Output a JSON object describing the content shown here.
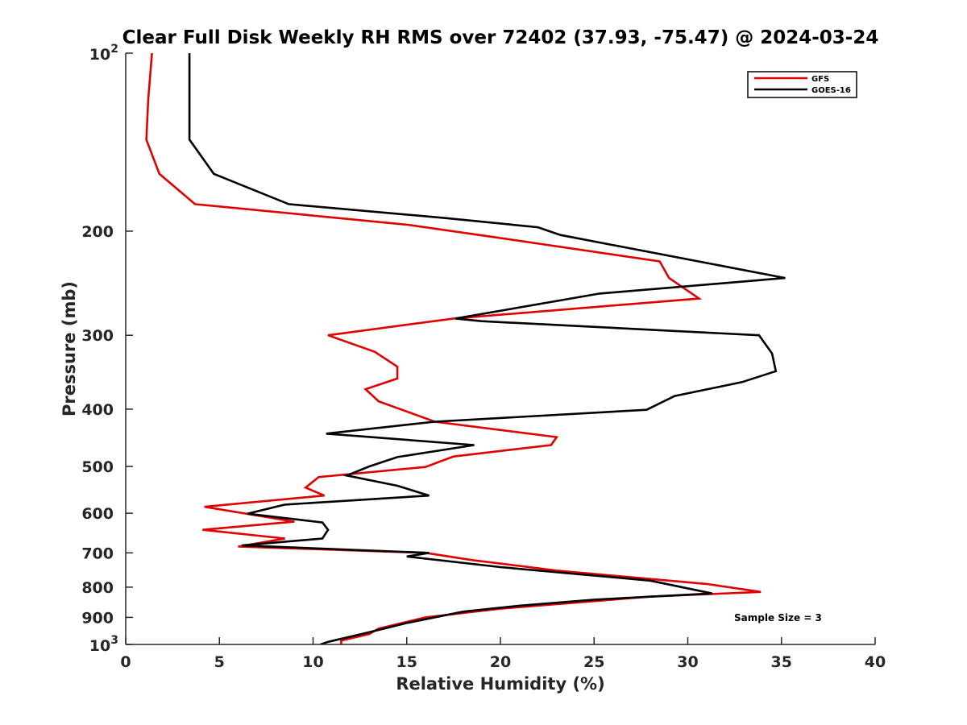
{
  "chart_data": {
    "type": "line",
    "title": "Clear Full Disk Weekly RH RMS over 72402 (37.93, -75.47) @ 2024-03-24",
    "xlabel": "Relative Humidity (%)",
    "ylabel": "Pressure (mb)",
    "xlim": [
      0,
      40
    ],
    "ylim": [
      100,
      1000
    ],
    "y_scale": "log",
    "y_reversed": true,
    "x_ticks": [
      {
        "value": 0,
        "label": "0"
      },
      {
        "value": 5,
        "label": "5"
      },
      {
        "value": 10,
        "label": "10"
      },
      {
        "value": 15,
        "label": "15"
      },
      {
        "value": 20,
        "label": "20"
      },
      {
        "value": 25,
        "label": "25"
      },
      {
        "value": 30,
        "label": "30"
      },
      {
        "value": 35,
        "label": "35"
      },
      {
        "value": 40,
        "label": "40"
      }
    ],
    "y_ticks": [
      {
        "value": 100,
        "base": "10",
        "exp": "2"
      },
      {
        "value": 200,
        "label": "200"
      },
      {
        "value": 300,
        "label": "300"
      },
      {
        "value": 400,
        "label": "400"
      },
      {
        "value": 500,
        "label": "500"
      },
      {
        "value": 600,
        "label": "600"
      },
      {
        "value": 700,
        "label": "700"
      },
      {
        "value": 800,
        "label": "800"
      },
      {
        "value": 900,
        "label": "900"
      },
      {
        "value": 1000,
        "base": "10",
        "exp": "3"
      }
    ],
    "legend": {
      "position": "top-right"
    },
    "annotation": "Sample Size = 3",
    "series": [
      {
        "name": "GFS",
        "color": "#e00000",
        "points": [
          [
            1.4,
            100
          ],
          [
            1.2,
            120
          ],
          [
            1.1,
            140
          ],
          [
            1.8,
            160
          ],
          [
            3.7,
            180
          ],
          [
            15.0,
            195
          ],
          [
            19.8,
            205
          ],
          [
            28.5,
            225
          ],
          [
            29.0,
            240
          ],
          [
            30.6,
            260
          ],
          [
            17.5,
            281
          ],
          [
            10.8,
            300
          ],
          [
            13.3,
            320
          ],
          [
            14.5,
            339
          ],
          [
            14.5,
            355
          ],
          [
            12.8,
            370
          ],
          [
            13.5,
            388
          ],
          [
            16.5,
            420
          ],
          [
            23.0,
            446
          ],
          [
            22.7,
            460
          ],
          [
            17.5,
            481
          ],
          [
            16.0,
            501
          ],
          [
            10.3,
            521
          ],
          [
            9.6,
            543
          ],
          [
            10.6,
            560
          ],
          [
            4.2,
            585
          ],
          [
            9.0,
            620
          ],
          [
            4.1,
            640
          ],
          [
            8.5,
            662
          ],
          [
            6.0,
            683
          ],
          [
            16.0,
            700
          ],
          [
            18.5,
            720
          ],
          [
            23.0,
            750
          ],
          [
            31.0,
            790
          ],
          [
            33.9,
            815
          ],
          [
            28.0,
            830
          ],
          [
            20.0,
            870
          ],
          [
            16.0,
            900
          ],
          [
            13.5,
            940
          ],
          [
            13.0,
            960
          ],
          [
            11.5,
            985
          ],
          [
            11.5,
            1000
          ]
        ]
      },
      {
        "name": "GOES-16",
        "color": "#000000",
        "points": [
          [
            3.4,
            100
          ],
          [
            3.4,
            120
          ],
          [
            3.4,
            140
          ],
          [
            4.7,
            160
          ],
          [
            8.7,
            180
          ],
          [
            17.0,
            190
          ],
          [
            22.0,
            197
          ],
          [
            23.2,
            203
          ],
          [
            35.2,
            240
          ],
          [
            25.3,
            255
          ],
          [
            17.6,
            281
          ],
          [
            19.0,
            284
          ],
          [
            33.8,
            300
          ],
          [
            34.5,
            322
          ],
          [
            34.7,
            345
          ],
          [
            32.9,
            360
          ],
          [
            29.3,
            380
          ],
          [
            27.8,
            401
          ],
          [
            16.5,
            420
          ],
          [
            10.7,
            440
          ],
          [
            18.6,
            460
          ],
          [
            14.5,
            482
          ],
          [
            13.0,
            500
          ],
          [
            11.8,
            518
          ],
          [
            14.5,
            539
          ],
          [
            16.2,
            560
          ],
          [
            8.5,
            580
          ],
          [
            6.5,
            601
          ],
          [
            10.5,
            622
          ],
          [
            10.8,
            640
          ],
          [
            10.5,
            662
          ],
          [
            6.2,
            680
          ],
          [
            16.2,
            700
          ],
          [
            15.0,
            710
          ],
          [
            20.0,
            740
          ],
          [
            28.0,
            780
          ],
          [
            31.3,
            820
          ],
          [
            25.0,
            840
          ],
          [
            21.0,
            860
          ],
          [
            18.0,
            880
          ],
          [
            15.0,
            920
          ],
          [
            13.5,
            945
          ],
          [
            12.6,
            960
          ],
          [
            10.8,
            990
          ],
          [
            10.4,
            1000
          ]
        ]
      }
    ]
  }
}
